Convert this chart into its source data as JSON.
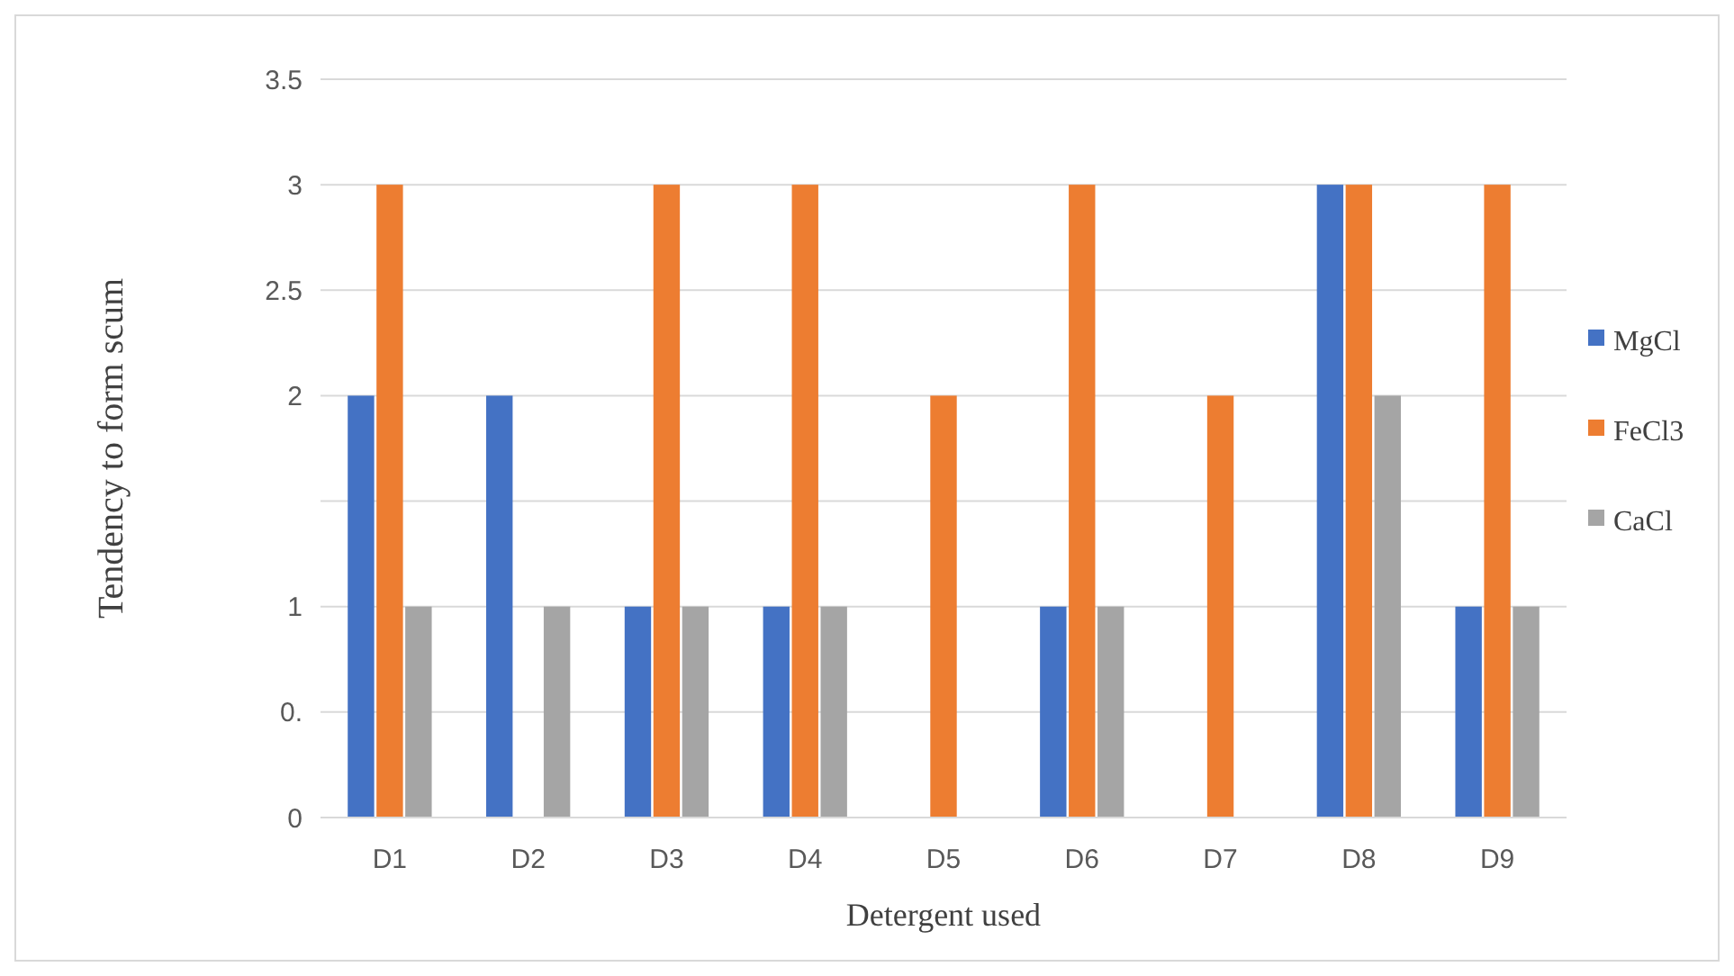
{
  "chart_data": {
    "type": "bar",
    "xlabel": "Detergent used",
    "ylabel": "Tendency to form scum",
    "categories": [
      "D1",
      "D2",
      "D3",
      "D4",
      "D5",
      "D6",
      "D7",
      "D8",
      "D9"
    ],
    "series": [
      {
        "name": "MgCl",
        "color": "#4472c4",
        "values": [
          2,
          2,
          1,
          1,
          0,
          1,
          0,
          3,
          1
        ]
      },
      {
        "name": "FeCl3",
        "color": "#ed7d31",
        "values": [
          3,
          0,
          3,
          3,
          2,
          3,
          2,
          3,
          3
        ]
      },
      {
        "name": "CaCl",
        "color": "#a5a5a5",
        "values": [
          1,
          1,
          1,
          1,
          0,
          1,
          0,
          2,
          1
        ]
      }
    ],
    "ylim": [
      0,
      3.5
    ],
    "yticks": [
      0,
      {
        "value": 0.5,
        "label": "0."
      },
      1,
      {
        "value": 1.5,
        "label": null
      },
      2,
      2.5,
      3,
      3.5
    ],
    "grid": "y",
    "legend": "right"
  }
}
